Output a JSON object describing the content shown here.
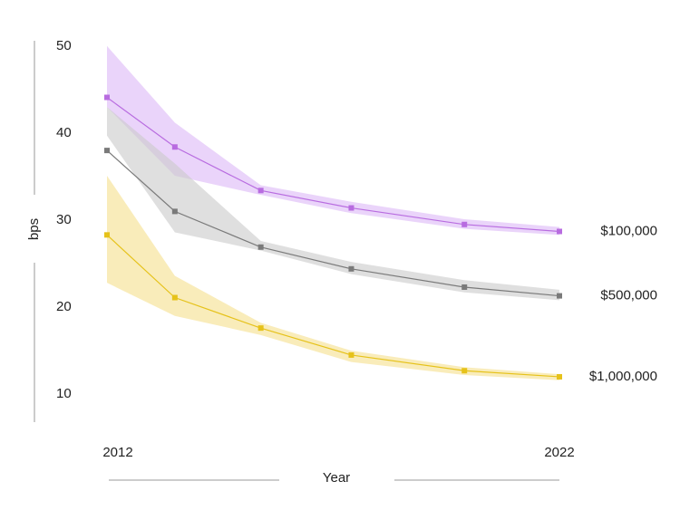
{
  "chart_data": {
    "type": "line-band",
    "x": [
      2012,
      2013.5,
      2015.4,
      2017.4,
      2019.9,
      2022
    ],
    "xlim": [
      2012,
      2022
    ],
    "xticks": [
      2012,
      2022
    ],
    "xlabel": "Year",
    "ylabel": "bps",
    "ylim": [
      7,
      50.5
    ],
    "yticks": [
      10,
      20,
      30,
      40,
      50
    ],
    "series": [
      {
        "name": "$100,000",
        "color": "#b86ce0",
        "band_color": "#dcb8f7",
        "values": [
          44.1,
          38.4,
          33.4,
          31.4,
          29.5,
          28.7
        ],
        "upper": [
          50.0,
          41.2,
          34.0,
          32.1,
          30.1,
          29.2
        ],
        "lower": [
          43.0,
          35.1,
          32.9,
          30.8,
          29.0,
          28.3
        ]
      },
      {
        "name": "$500,000",
        "color": "#7a7a7a",
        "band_color": "#c9c9c9",
        "values": [
          38.0,
          31.0,
          26.9,
          24.4,
          22.3,
          21.3
        ],
        "upper": [
          43.0,
          36.5,
          27.6,
          25.2,
          23.1,
          22.0
        ],
        "lower": [
          39.7,
          28.6,
          26.5,
          23.8,
          21.7,
          20.8
        ]
      },
      {
        "name": "$1,000,000",
        "color": "#e6c21a",
        "band_color": "#f5df8c",
        "values": [
          28.3,
          21.1,
          17.6,
          14.5,
          12.7,
          12.0
        ],
        "upper": [
          35.1,
          23.6,
          18.2,
          15.0,
          13.1,
          12.3
        ],
        "lower": [
          22.8,
          19.0,
          16.8,
          13.7,
          12.2,
          11.6
        ]
      }
    ]
  }
}
